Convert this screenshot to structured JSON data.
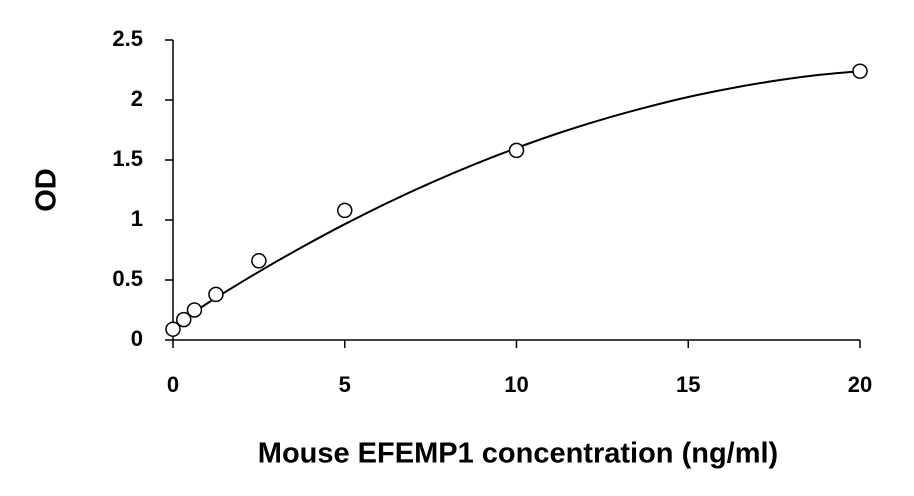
{
  "chart_data": {
    "type": "scatter",
    "xlabel": "Mouse EFEMP1 concentration (ng/ml)",
    "ylabel": "OD",
    "series": [
      {
        "x": [
          0,
          0.3125,
          0.625,
          1.25,
          2.5,
          5,
          10,
          20
        ],
        "values": [
          0.09,
          0.17,
          0.25,
          0.38,
          0.66,
          1.08,
          1.58,
          2.24
        ],
        "color": "#000000",
        "marker": "circle"
      },
      {
        "x": [
          0,
          1.25,
          2.5,
          3.75,
          5,
          6.25,
          7.5,
          8.75,
          10,
          11.25,
          12.5,
          13.75,
          15,
          16.25,
          17.5,
          18.75,
          20
        ],
        "values": [
          0.12,
          0.351,
          0.569,
          0.773,
          0.965,
          1.144,
          1.309,
          1.461,
          1.6,
          1.726,
          1.838,
          1.937,
          2.025,
          2.098,
          2.159,
          2.207,
          2.24
        ],
        "color": "#000000",
        "marker": "line"
      }
    ],
    "xlim": [
      0,
      20
    ],
    "xticks": [
      0,
      5,
      10,
      15,
      20
    ],
    "ylim": [
      0,
      2.5
    ],
    "yticks": [
      0,
      0.5,
      1,
      1.5,
      2,
      2.5
    ],
    "grid": false
  }
}
